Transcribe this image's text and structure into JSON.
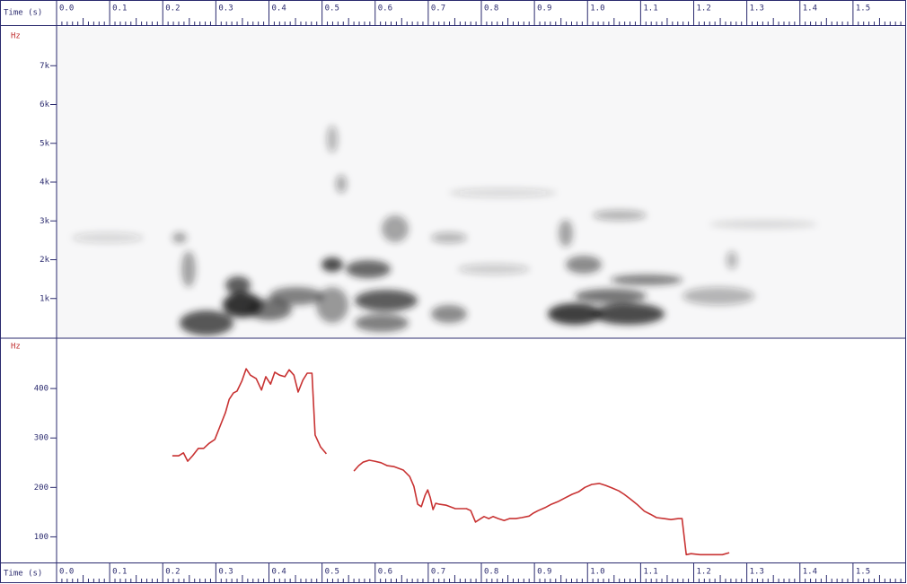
{
  "chart_data": [
    {
      "type": "spectrogram",
      "xlabel": "Time (s)",
      "ylabel": "Hz",
      "xlim": [
        0,
        1.6
      ],
      "xticks": [
        {
          "value": 0,
          "label": "0.0"
        },
        0.1,
        0.2,
        0.3,
        0.4,
        0.5,
        0.6,
        0.7,
        0.8,
        0.9,
        {
          "value": 1,
          "label": "1.0"
        },
        1.1,
        1.2,
        1.3,
        1.4,
        1.5
      ],
      "ylim": [
        0,
        8000
      ],
      "yticks": [
        {
          "value": 1000,
          "label": "1k"
        },
        {
          "value": 2000,
          "label": "2k"
        },
        {
          "value": 3000,
          "label": "3k"
        },
        {
          "value": 4000,
          "label": "4k"
        },
        {
          "value": 5000,
          "label": "5k"
        },
        {
          "value": 6000,
          "label": "6k"
        },
        {
          "value": 7000,
          "label": "7k"
        }
      ]
    },
    {
      "type": "line",
      "ylabel": "Hz",
      "ylim": [
        50,
        500
      ],
      "yticks": [
        100,
        200,
        300,
        400
      ],
      "color": "#c83232",
      "x": [
        0.218,
        0.23,
        0.239,
        0.247,
        0.256,
        0.267,
        0.277,
        0.287,
        0.298,
        0.308,
        0.318,
        0.325,
        0.333,
        0.34,
        0.349,
        0.357,
        0.365,
        0.376,
        0.386,
        0.394,
        0.403,
        0.411,
        0.42,
        0.43,
        0.438,
        0.447,
        0.455,
        0.464,
        0.472,
        0.481,
        0.487,
        0.497,
        0.508,
        0.53,
        0.56,
        0.569,
        0.577,
        0.589,
        0.599,
        0.611,
        0.623,
        0.636,
        0.653,
        0.665,
        0.673,
        0.68,
        0.687,
        0.694,
        0.699,
        0.704,
        0.709,
        0.714,
        0.721,
        0.734,
        0.751,
        0.772,
        0.78,
        0.789,
        0.799,
        0.805,
        0.814,
        0.822,
        0.832,
        0.843,
        0.853,
        0.865,
        0.876,
        0.89,
        0.898,
        0.907,
        0.92,
        0.932,
        0.944,
        0.958,
        0.971,
        0.983,
        0.995,
        1.008,
        1.022,
        1.034,
        1.046,
        1.059,
        1.069,
        1.08,
        1.093,
        1.107,
        1.118,
        1.13,
        1.144,
        1.157,
        1.171,
        1.178,
        1.186,
        1.195,
        1.212,
        1.237,
        1.254,
        1.267
      ],
      "values": [
        264,
        264,
        270,
        253,
        264,
        279,
        279,
        289,
        297,
        324,
        351,
        378,
        391,
        395,
        415,
        440,
        427,
        420,
        397,
        424,
        409,
        433,
        427,
        424,
        438,
        427,
        393,
        417,
        431,
        431,
        306,
        282,
        268,
        null,
        233,
        244,
        251,
        255,
        253,
        250,
        244,
        242,
        235,
        222,
        202,
        166,
        161,
        184,
        195,
        179,
        155,
        168,
        166,
        164,
        157,
        157,
        153,
        130,
        137,
        141,
        137,
        141,
        137,
        133,
        137,
        137,
        139,
        142,
        148,
        153,
        159,
        166,
        171,
        179,
        186,
        191,
        200,
        206,
        208,
        204,
        199,
        193,
        186,
        177,
        166,
        152,
        146,
        139,
        137,
        135,
        137,
        137,
        64,
        66,
        64,
        64,
        64,
        68
      ]
    }
  ]
}
